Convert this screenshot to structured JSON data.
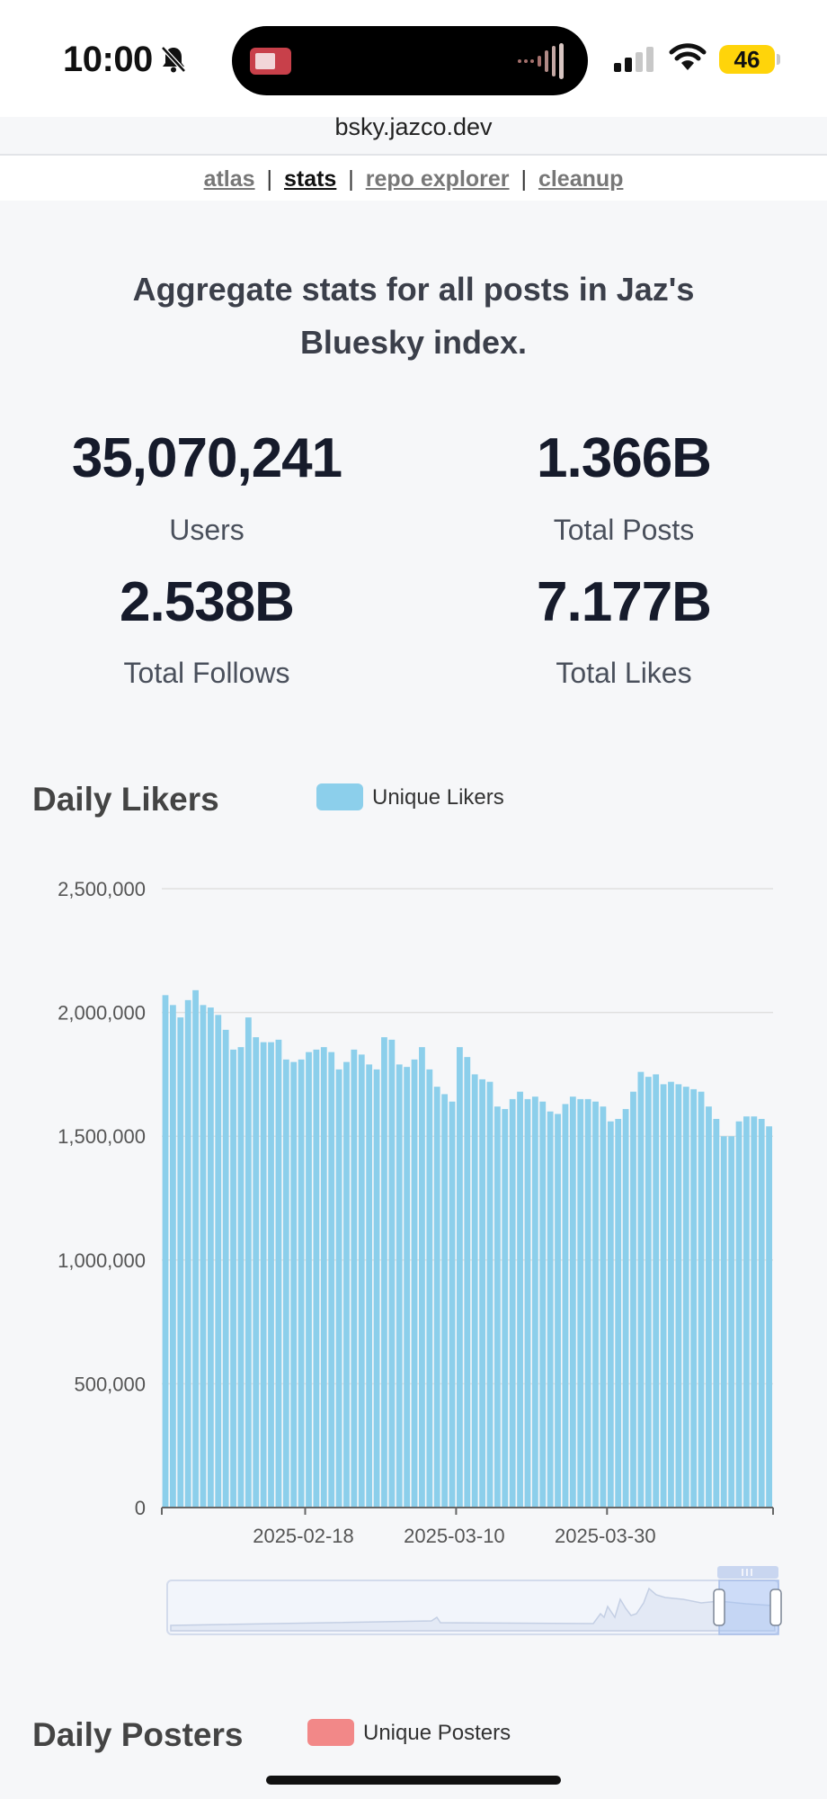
{
  "status_bar": {
    "time": "10:00",
    "battery": "46",
    "icons": [
      "bell-slash-icon",
      "signal-icon",
      "wifi-icon",
      "battery-icon"
    ]
  },
  "browser": {
    "url": "bsky.jazco.dev"
  },
  "nav": {
    "items": [
      {
        "label": "atlas",
        "active": false
      },
      {
        "label": "stats",
        "active": true
      },
      {
        "label": "repo explorer",
        "active": false
      },
      {
        "label": "cleanup",
        "active": false
      }
    ],
    "separator": "|"
  },
  "intro": "Aggregate stats for all posts in Jaz's Bluesky index.",
  "stats": [
    {
      "value": "35,070,241",
      "label": "Users"
    },
    {
      "value": "1.366B",
      "label": "Total Posts"
    },
    {
      "value": "2.538B",
      "label": "Total Follows"
    },
    {
      "value": "7.177B",
      "label": "Total Likes"
    }
  ],
  "likers": {
    "title": "Daily Likers",
    "legend": "Unique Likers",
    "color": "#8ccfeb"
  },
  "posters": {
    "title": "Daily Posters",
    "legend": "Unique Posters",
    "color": "#f28888"
  },
  "chart_data": {
    "type": "bar",
    "title": "Daily Likers",
    "series": [
      {
        "name": "Unique Likers",
        "color": "#8ccfeb",
        "values": [
          2070000,
          2030000,
          1980000,
          2050000,
          2090000,
          2030000,
          2020000,
          1990000,
          1930000,
          1850000,
          1860000,
          1980000,
          1900000,
          1880000,
          1880000,
          1890000,
          1810000,
          1800000,
          1810000,
          1840000,
          1850000,
          1860000,
          1840000,
          1770000,
          1800000,
          1850000,
          1830000,
          1790000,
          1770000,
          1900000,
          1890000,
          1790000,
          1780000,
          1810000,
          1860000,
          1770000,
          1700000,
          1670000,
          1640000,
          1860000,
          1820000,
          1750000,
          1730000,
          1720000,
          1620000,
          1610000,
          1650000,
          1680000,
          1650000,
          1660000,
          1640000,
          1600000,
          1590000,
          1630000,
          1660000,
          1650000,
          1650000,
          1640000,
          1620000,
          1560000,
          1570000,
          1610000,
          1680000,
          1760000,
          1740000,
          1750000,
          1710000,
          1720000,
          1710000,
          1700000,
          1690000,
          1680000,
          1620000,
          1570000,
          1500000,
          1500000,
          1560000,
          1580000,
          1580000,
          1570000,
          1540000
        ]
      }
    ],
    "x_tick_labels": [
      "2025-02-18",
      "2025-03-10",
      "2025-03-30"
    ],
    "y_tick_labels": [
      "0",
      "500,000",
      "1,000,000",
      "1,500,000",
      "2,000,000",
      "2,500,000"
    ],
    "ylim": [
      0,
      2500000
    ],
    "grid": true,
    "legend_position": "top",
    "has_zoom_slider": true
  }
}
